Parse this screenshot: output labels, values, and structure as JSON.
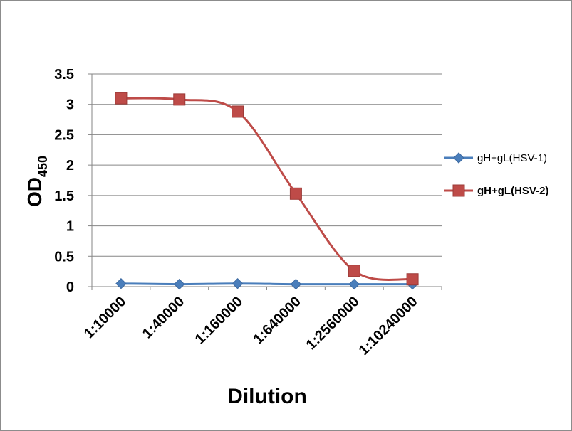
{
  "chart_data": {
    "type": "line",
    "title": "",
    "xlabel": "Dilution",
    "ylabel_main": "OD",
    "ylabel_sub": "450",
    "categories": [
      "1:10000",
      "1:40000",
      "1:160000",
      "1:640000",
      "1:2560000",
      "1:10240000"
    ],
    "ylim": [
      0,
      3.5
    ],
    "yticks": [
      0,
      0.5,
      1,
      1.5,
      2,
      2.5,
      3,
      3.5
    ],
    "ytick_labels": [
      "0",
      "0.5",
      "1",
      "1.5",
      "2",
      "2.5",
      "3",
      "3.5"
    ],
    "grid": true,
    "legend_position": "right",
    "series": [
      {
        "name": "gH+gL(HSV-1)",
        "color": "#4a7ebb",
        "marker": "diamond",
        "values": [
          0.05,
          0.04,
          0.05,
          0.04,
          0.04,
          0.04
        ]
      },
      {
        "name": "gH+gL(HSV-2)",
        "color": "#be4b48",
        "marker": "square",
        "values": [
          3.1,
          3.08,
          2.88,
          1.53,
          0.26,
          0.12
        ]
      }
    ]
  }
}
